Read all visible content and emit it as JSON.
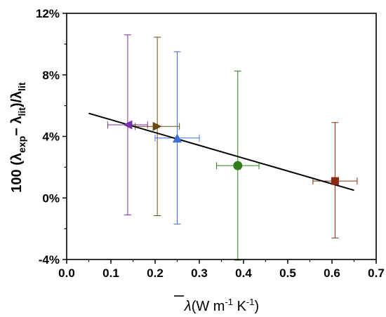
{
  "chart_data": {
    "type": "scatter",
    "title": "",
    "xlabel": {
      "symbol": "λ",
      "text": "(W m",
      "sup1": "-1",
      "mid": " K",
      "sup2": "-1",
      "end": ")"
    },
    "ylabel": {
      "prefix": "100 (λ",
      "sub1": "exp",
      "minus": "− λ",
      "sub2": "lit",
      "slash": ")/λ",
      "sub3": "lit"
    },
    "xlim": [
      0.0,
      0.7
    ],
    "ylim": [
      -4,
      12
    ],
    "x_ticks": [
      "0.0",
      "0.1",
      "0.2",
      "0.3",
      "0.4",
      "0.5",
      "0.6",
      "0.7"
    ],
    "y_ticks": [
      "-4%",
      "0%",
      "4%",
      "8%",
      "12%"
    ],
    "x_tick_values": [
      0.0,
      0.1,
      0.2,
      0.3,
      0.4,
      0.5,
      0.6,
      0.7
    ],
    "y_tick_values": [
      -4,
      0,
      4,
      8,
      12
    ],
    "grid": false,
    "points": [
      {
        "x": 0.138,
        "y": 4.75,
        "xerr": 0.045,
        "yerr_lo": 5.85,
        "yerr_hi": 5.85,
        "marker": "triangle-left",
        "color": "#7b2fa8"
      },
      {
        "x": 0.205,
        "y": 4.65,
        "xerr": 0.05,
        "yerr_lo": 5.8,
        "yerr_hi": 5.8,
        "marker": "triangle-right",
        "color": "#6b4a10"
      },
      {
        "x": 0.25,
        "y": 3.9,
        "xerr": 0.05,
        "yerr_lo": 5.6,
        "yerr_hi": 5.6,
        "marker": "triangle-up",
        "color": "#3a6fd8"
      },
      {
        "x": 0.387,
        "y": 2.1,
        "xerr": 0.048,
        "yerr_lo": 6.15,
        "yerr_hi": 6.15,
        "marker": "circle",
        "color": "#2e7d1a"
      },
      {
        "x": 0.607,
        "y": 1.1,
        "xerr": 0.05,
        "yerr_lo": 3.7,
        "yerr_hi": 3.8,
        "marker": "square",
        "color": "#8b2a10"
      }
    ],
    "fit_line": {
      "x": [
        0.05,
        0.65
      ],
      "y": [
        5.5,
        0.5
      ],
      "color": "#000000"
    }
  }
}
